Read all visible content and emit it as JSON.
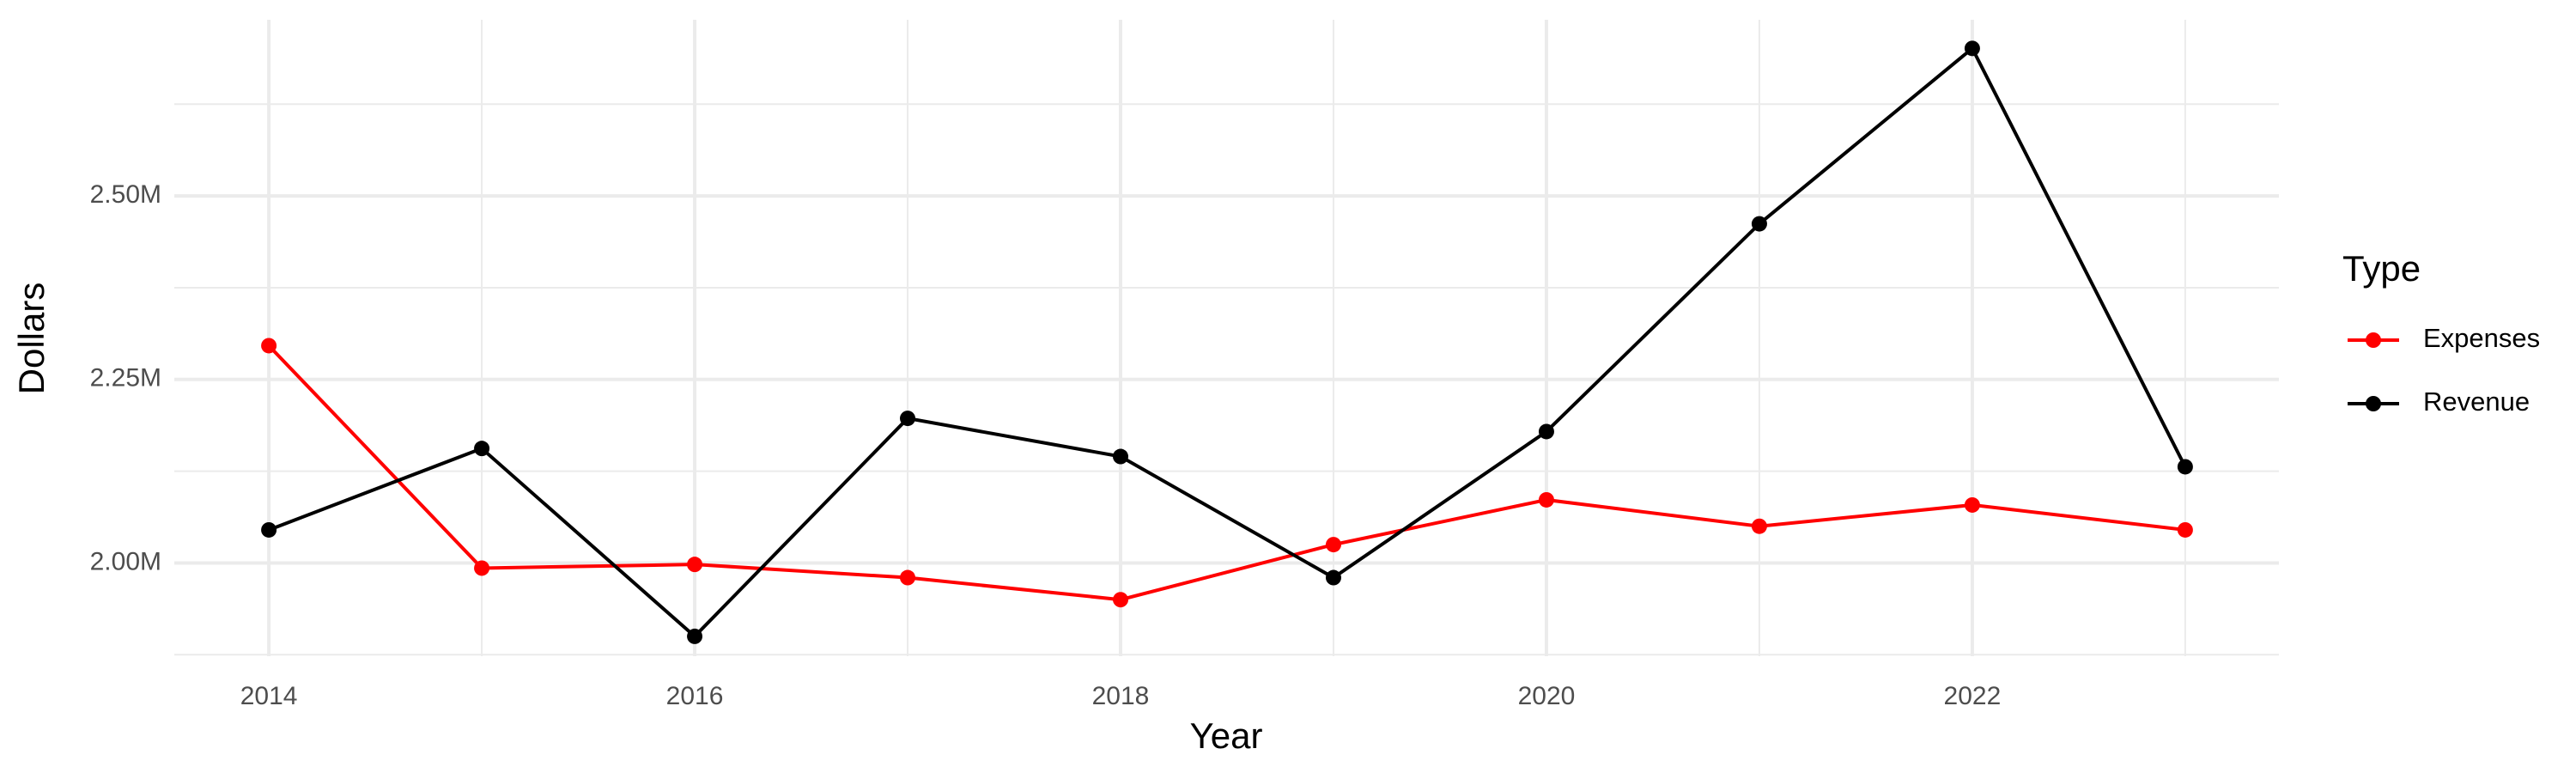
{
  "chart_data": {
    "type": "line",
    "x_label": "Year",
    "y_label": "Dollars",
    "legend_title": "Type",
    "x": [
      2014,
      2015,
      2016,
      2017,
      2018,
      2019,
      2020,
      2021,
      2022,
      2023
    ],
    "series": [
      {
        "name": "Expenses",
        "color": "#ff0000",
        "values": [
          2296000,
          1993000,
          1998000,
          1980000,
          1950000,
          2025000,
          2086000,
          2050000,
          2079000,
          2045000
        ]
      },
      {
        "name": "Revenue",
        "color": "#000000",
        "values": [
          2045000,
          2156000,
          1900000,
          2197000,
          2145000,
          1980000,
          2179000,
          2462000,
          2701000,
          2131000
        ]
      }
    ],
    "xlim": [
      2013.556,
      2023.44
    ],
    "xticks": [
      2014,
      2016,
      2018,
      2020,
      2022
    ],
    "ylim": [
      1873000,
      2740000
    ],
    "yticks": [
      {
        "value": 2000000,
        "label": "2.00M"
      },
      {
        "value": 2250000,
        "label": "2.25M"
      },
      {
        "value": 2500000,
        "label": "2.50M"
      }
    ],
    "grid": true,
    "legend": "right"
  }
}
